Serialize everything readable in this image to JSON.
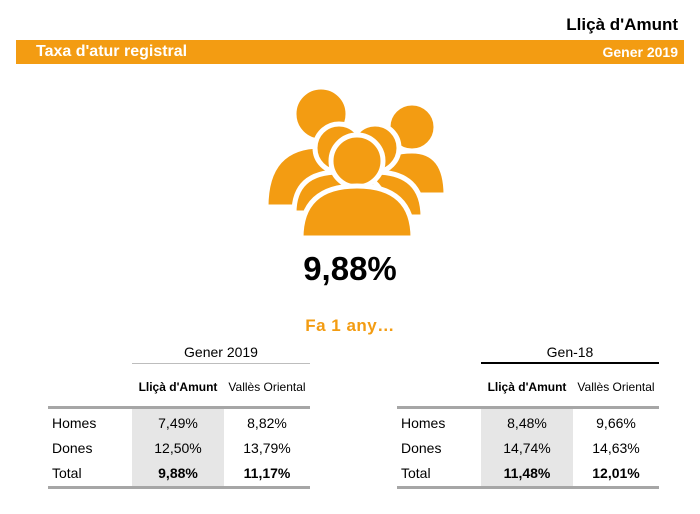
{
  "municipality": "Lliçà d'Amunt",
  "banner": {
    "title": "Taxa d'atur registral",
    "period": "Gener 2019"
  },
  "icon": "people-group-icon",
  "accent_color": "#f39c12",
  "main_rate": "9,88%",
  "year_ago_label": "Fa 1 any…",
  "tables": [
    {
      "period": "Gener 2019",
      "columns": [
        "Lliçà d'Amunt",
        "Vallès Oriental"
      ],
      "rows": [
        {
          "label": "Homes",
          "values": [
            "7,49%",
            "8,82%"
          ]
        },
        {
          "label": "Dones",
          "values": [
            "12,50%",
            "13,79%"
          ]
        },
        {
          "label": "Total",
          "values": [
            "9,88%",
            "11,17%"
          ]
        }
      ]
    },
    {
      "period": "Gen-18",
      "columns": [
        "Lliçà d'Amunt",
        "Vallès Oriental"
      ],
      "rows": [
        {
          "label": "Homes",
          "values": [
            "8,48%",
            "9,66%"
          ]
        },
        {
          "label": "Dones",
          "values": [
            "14,74%",
            "14,63%"
          ]
        },
        {
          "label": "Total",
          "values": [
            "11,48%",
            "12,01%"
          ]
        }
      ]
    }
  ]
}
